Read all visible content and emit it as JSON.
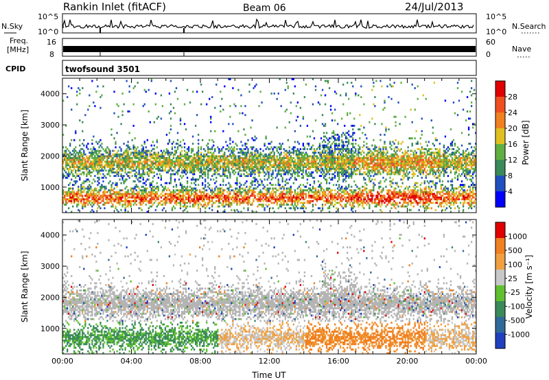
{
  "header": {
    "title": "Rankin Inlet (fitACF)",
    "beam": "Beam 06",
    "date": "24/Jul/2013"
  },
  "noise_panel": {
    "left_label": "N.Sky",
    "right_label": "N.Search",
    "left_ticks": [
      "10^5",
      "10^0"
    ],
    "right_ticks": [
      "10^5",
      "10^0"
    ]
  },
  "freq_panel": {
    "left_label_line1": "Freq.",
    "left_label_line2": "[MHz]",
    "right_label": "Nave",
    "left_ticks": [
      "16",
      "8"
    ],
    "right_ticks": [
      "60",
      "0"
    ]
  },
  "cpid_panel": {
    "label": "CPID",
    "mode": "twofsound 3501"
  },
  "colors": {
    "power_scale": [
      "#0000ff",
      "#2050c0",
      "#3a8a5a",
      "#5fb040",
      "#e0c020",
      "#f08020",
      "#f05020",
      "#e00000"
    ],
    "velocity_scale": [
      "#2040c0",
      "#306a9a",
      "#3a8a5a",
      "#60c030",
      "#c8c8c8",
      "#f0a040",
      "#f08020",
      "#e00000"
    ],
    "ground_scatter": "#b4b4b4"
  },
  "chart_data": [
    {
      "type": "heatmap",
      "name": "power",
      "ylabel": "Slant Range [km]",
      "ylim": [
        180,
        4500
      ],
      "yticks": [
        "1000",
        "2000",
        "3000",
        "4000"
      ],
      "xlim": [
        0,
        24
      ],
      "colorbar_label": "Power [dB]",
      "colorbar_ticks": [
        "28",
        "24",
        "20",
        "16",
        "12",
        "8",
        "4"
      ],
      "colorbar_range": [
        0,
        32
      ]
    },
    {
      "type": "heatmap",
      "name": "velocity",
      "ylabel": "Slant Range [km]",
      "ylim": [
        180,
        4500
      ],
      "yticks": [
        "1000",
        "2000",
        "3000",
        "4000"
      ],
      "xlim": [
        0,
        24
      ],
      "xticks": [
        "00:00",
        "04:00",
        "08:00",
        "12:00",
        "16:00",
        "20:00",
        "00:00"
      ],
      "xlabel": "Time UT",
      "colorbar_label": "Velocity [m s⁻¹]",
      "colorbar_ticks": [
        "1000",
        "500",
        "100",
        "25",
        "-25",
        "-100",
        "-500",
        "-1000"
      ]
    }
  ]
}
